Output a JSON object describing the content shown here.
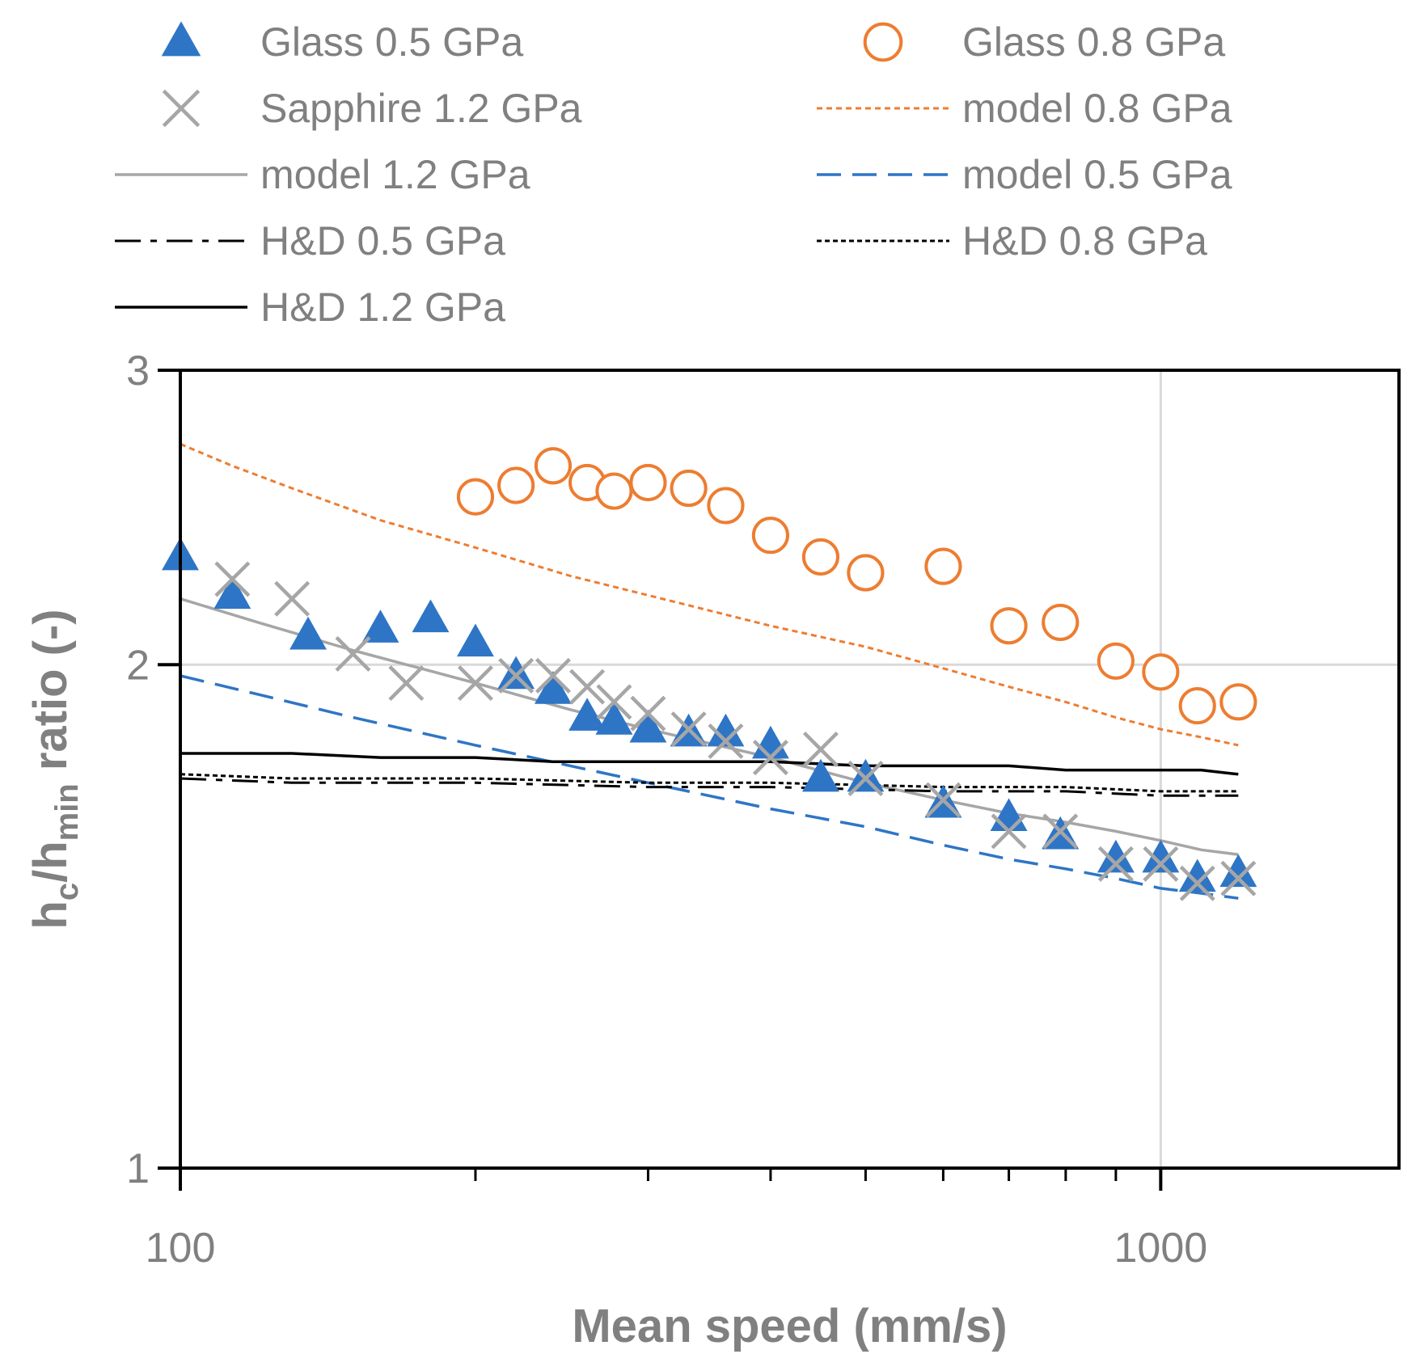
{
  "chart_data": {
    "type": "scatter",
    "x_scale": "log",
    "y_scale": "log",
    "xlabel": "Mean speed (mm/s)",
    "ylabel_parts": [
      "h",
      "c",
      "/h",
      "min",
      " ratio (-)"
    ],
    "xlim": [
      100,
      1750
    ],
    "ylim": [
      1,
      3
    ],
    "x_ticks": [
      100,
      1000
    ],
    "x_tick_labels": [
      "100",
      "1000"
    ],
    "x_minor_ticks": [
      200,
      300,
      400,
      500,
      600,
      700,
      800,
      900
    ],
    "y_ticks": [
      1,
      2,
      3
    ],
    "y_tick_labels": [
      "1",
      "2",
      "3"
    ],
    "grid": true,
    "legend_position": "top",
    "series": [
      {
        "name": "Glass 0.5 GPa",
        "kind": "marker",
        "marker": "triangle",
        "color": "#2e75c6",
        "x": [
          100,
          113,
          135,
          160,
          180,
          200,
          220,
          240,
          260,
          277,
          300,
          330,
          360,
          400,
          450,
          500,
          600,
          700,
          790,
          900,
          1000,
          1090,
          1200
        ],
        "y": [
          2.32,
          2.2,
          2.08,
          2.1,
          2.13,
          2.06,
          1.97,
          1.93,
          1.86,
          1.85,
          1.83,
          1.82,
          1.82,
          1.79,
          1.71,
          1.71,
          1.65,
          1.62,
          1.58,
          1.53,
          1.53,
          1.49,
          1.5
        ]
      },
      {
        "name": "Glass 0.8 GPa",
        "kind": "marker",
        "marker": "circle",
        "color": "#ed7d31",
        "x": [
          200,
          220,
          240,
          260,
          277,
          300,
          330,
          360,
          400,
          450,
          500,
          600,
          700,
          790,
          900,
          1000,
          1090,
          1200
        ],
        "y": [
          2.52,
          2.56,
          2.63,
          2.57,
          2.54,
          2.57,
          2.55,
          2.49,
          2.39,
          2.32,
          2.27,
          2.29,
          2.11,
          2.12,
          2.01,
          1.98,
          1.89,
          1.9
        ]
      },
      {
        "name": "Sapphire 1.2 GPa",
        "kind": "marker",
        "marker": "x",
        "color": "#a6a6a6",
        "x": [
          113,
          130,
          150,
          170,
          200,
          220,
          240,
          260,
          277,
          300,
          330,
          360,
          400,
          450,
          500,
          600,
          700,
          790,
          900,
          1000,
          1090,
          1200
        ],
        "y": [
          2.25,
          2.19,
          2.03,
          1.95,
          1.95,
          1.97,
          1.97,
          1.94,
          1.9,
          1.87,
          1.83,
          1.8,
          1.76,
          1.78,
          1.71,
          1.66,
          1.59,
          1.59,
          1.52,
          1.52,
          1.48,
          1.49
        ]
      },
      {
        "name": "model 0.8 GPa",
        "kind": "line",
        "dash": "7,5",
        "width": 3,
        "color": "#ed7d31",
        "x": [
          100,
          113,
          130,
          160,
          200,
          250,
          320,
          400,
          500,
          600,
          700,
          800,
          900,
          1000,
          1100,
          1200
        ],
        "y": [
          2.71,
          2.63,
          2.55,
          2.44,
          2.35,
          2.26,
          2.18,
          2.11,
          2.05,
          1.99,
          1.94,
          1.9,
          1.86,
          1.83,
          1.81,
          1.79
        ]
      },
      {
        "name": "model 1.2 GPa",
        "kind": "line",
        "dash": "",
        "width": 3.5,
        "color": "#a6a6a6",
        "x": [
          100,
          120,
          150,
          200,
          250,
          300,
          400,
          500,
          600,
          700,
          800,
          900,
          1000,
          1100,
          1200
        ],
        "y": [
          2.19,
          2.12,
          2.04,
          1.95,
          1.88,
          1.83,
          1.76,
          1.7,
          1.66,
          1.63,
          1.61,
          1.59,
          1.57,
          1.55,
          1.54
        ]
      },
      {
        "name": "model 0.5 GPa",
        "kind": "line",
        "dash": "30,14",
        "width": 3.5,
        "color": "#2e75c6",
        "x": [
          100,
          120,
          150,
          200,
          250,
          300,
          400,
          500,
          600,
          700,
          800,
          900,
          1000,
          1100,
          1200
        ],
        "y": [
          1.97,
          1.92,
          1.86,
          1.79,
          1.74,
          1.7,
          1.64,
          1.6,
          1.56,
          1.53,
          1.51,
          1.49,
          1.47,
          1.46,
          1.45
        ]
      },
      {
        "name": "H&D 0.5 GPa",
        "kind": "line",
        "dash": "32,12,8,12",
        "width": 3,
        "color": "#000000",
        "x": [
          100,
          130,
          200,
          300,
          400,
          600,
          800,
          1000,
          1200
        ],
        "y": [
          1.71,
          1.7,
          1.7,
          1.69,
          1.69,
          1.68,
          1.68,
          1.67,
          1.67
        ]
      },
      {
        "name": "H&D 0.8 GPa",
        "kind": "line",
        "dash": "6,4",
        "width": 3,
        "color": "#000000",
        "x": [
          100,
          130,
          200,
          300,
          400,
          600,
          800,
          1000,
          1200
        ],
        "y": [
          1.72,
          1.71,
          1.71,
          1.7,
          1.7,
          1.69,
          1.69,
          1.68,
          1.68
        ]
      },
      {
        "name": "H&D 1.2 GPa",
        "kind": "line",
        "dash": "",
        "width": 3.5,
        "color": "#000000",
        "x": [
          100,
          130,
          160,
          200,
          240,
          300,
          400,
          500,
          600,
          700,
          800,
          900,
          1000,
          1100,
          1200
        ],
        "y": [
          1.77,
          1.77,
          1.76,
          1.76,
          1.75,
          1.75,
          1.75,
          1.74,
          1.74,
          1.74,
          1.73,
          1.73,
          1.73,
          1.73,
          1.72
        ]
      }
    ]
  }
}
